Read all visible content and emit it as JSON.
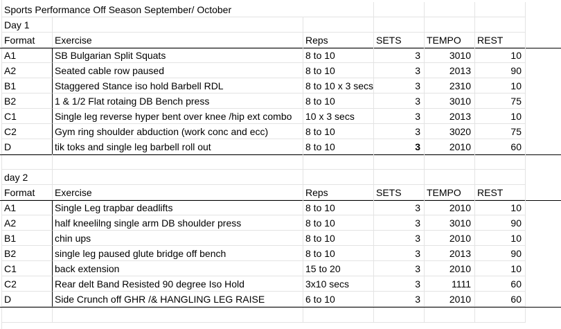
{
  "title": "Sports Performance Off Season September/ October",
  "headers": {
    "format": "Format",
    "exercise": "Exercise",
    "reps": "Reps",
    "sets": "SETS",
    "tempo": "TEMPO",
    "rest": "REST"
  },
  "day1": {
    "label": "Day 1",
    "rows": [
      {
        "format": "A1",
        "exercise": "SB Bulgarian Split Squats",
        "reps": "8 to 10",
        "sets": "3",
        "tempo": "3010",
        "rest": "10"
      },
      {
        "format": "A2",
        "exercise": "Seated cable row paused",
        "reps": "8 to 10",
        "sets": "3",
        "tempo": "2013",
        "rest": "90"
      },
      {
        "format": "B1",
        "exercise": "Staggered Stance iso hold Barbell RDL",
        "reps": "8 to 10 x 3 secs",
        "sets": "3",
        "tempo": "2310",
        "rest": "10"
      },
      {
        "format": "B2",
        "exercise": "1 & 1/2 Flat rotaing DB Bench press",
        "reps": "8 to 10",
        "sets": "3",
        "tempo": "3010",
        "rest": "75"
      },
      {
        "format": "C1",
        "exercise": "Single leg reverse hyper bent over knee /hip ext combo",
        "reps": "10 x 3 secs",
        "sets": "3",
        "tempo": "2013",
        "rest": "10"
      },
      {
        "format": "C2",
        "exercise": "Gym ring shoulder abduction (work conc and ecc)",
        "reps": "8 to 10",
        "sets": "3",
        "tempo": "3020",
        "rest": "75"
      },
      {
        "format": "D",
        "exercise": "tik toks and single leg barbell roll out",
        "reps": "8 to 10",
        "sets": "3",
        "tempo": "2010",
        "rest": "60"
      }
    ]
  },
  "day2": {
    "label": "day 2",
    "rows": [
      {
        "format": "A1",
        "exercise": "Single Leg trapbar deadlifts",
        "reps": "8 to 10",
        "sets": "3",
        "tempo": "2010",
        "rest": "10"
      },
      {
        "format": "A2",
        "exercise": "half kneelilng single arm DB shoulder press",
        "reps": "8 to 10",
        "sets": "3",
        "tempo": "3010",
        "rest": "90"
      },
      {
        "format": "B1",
        "exercise": "chin ups",
        "reps": "8 to 10",
        "sets": "3",
        "tempo": "2010",
        "rest": "10"
      },
      {
        "format": "B2",
        "exercise": "single leg paused glute bridge off bench",
        "reps": "8 to 10",
        "sets": "3",
        "tempo": "2013",
        "rest": "90"
      },
      {
        "format": "C1",
        "exercise": "back extension",
        "reps": "15 to 20",
        "sets": "3",
        "tempo": "2010",
        "rest": "10"
      },
      {
        "format": "C2",
        "exercise": "Rear delt Band Resisted 90 degree Iso Hold",
        "reps": "3x10 secs",
        "sets": "3",
        "tempo": "1111",
        "rest": "60"
      },
      {
        "format": "D",
        "exercise": "Side Crunch off GHR /& HANGLING LEG RAISE",
        "reps": "6 to 10",
        "sets": "3",
        "tempo": "2010",
        "rest": "60"
      }
    ]
  }
}
